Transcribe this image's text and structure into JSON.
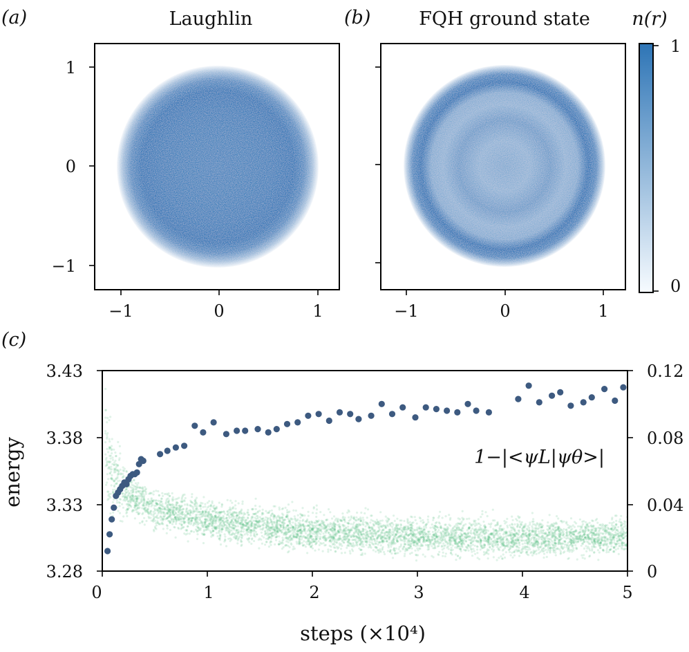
{
  "panel_a": {
    "letter": "(a)",
    "title": "Laughlin",
    "x_ticks": [
      "−1",
      "0",
      "1"
    ],
    "y_ticks": [
      "1",
      "0",
      "−1"
    ]
  },
  "panel_b": {
    "letter": "(b)",
    "title": "FQH ground state",
    "x_ticks": [
      "−1",
      "0",
      "1"
    ]
  },
  "colorbar": {
    "label": "n(r)",
    "max_label": "1",
    "min_label": "0",
    "color_top": "#2e75b6",
    "color_bottom": "#f7fbff"
  },
  "panel_c": {
    "letter": "(c)",
    "left_ylabel": "energy",
    "left_ticks": [
      "3.43",
      "3.38",
      "3.33",
      "3.28"
    ],
    "right_ticks": [
      "0.12",
      "0.08",
      "0.04",
      "0"
    ],
    "x_ticks": [
      "0",
      "1",
      "2",
      "3",
      "4",
      "5"
    ],
    "xlabel": "steps (×10⁴)",
    "infidelity_label": "1−|<ψL|ψθ>|"
  },
  "colors": {
    "energy": "#3cb371",
    "infidelity": "#3d5a80",
    "density": "#2e75b6"
  },
  "chart_data": [
    {
      "type": "heatmap",
      "title": "Laughlin",
      "quantity": "n(r)",
      "xlim": [
        -1.2,
        1.2
      ],
      "ylim": [
        -1.2,
        1.2
      ],
      "disk_radius": 0.99,
      "radial_density": [
        [
          0.0,
          0.88
        ],
        [
          0.3,
          0.9
        ],
        [
          0.55,
          0.93
        ],
        [
          0.75,
          0.98
        ],
        [
          0.85,
          0.82
        ],
        [
          0.93,
          0.45
        ],
        [
          0.99,
          0.05
        ]
      ]
    },
    {
      "type": "heatmap",
      "title": "FQH ground state",
      "quantity": "n(r)",
      "xlim": [
        -1.2,
        1.2
      ],
      "ylim": [
        -1.2,
        1.2
      ],
      "disk_radius": 0.99,
      "radial_density": [
        [
          0.0,
          0.62
        ],
        [
          0.25,
          0.55
        ],
        [
          0.45,
          0.72
        ],
        [
          0.6,
          0.55
        ],
        [
          0.72,
          0.6
        ],
        [
          0.82,
          1.0
        ],
        [
          0.9,
          0.85
        ],
        [
          0.96,
          0.35
        ],
        [
          0.99,
          0.05
        ]
      ]
    },
    {
      "type": "scatter",
      "xlabel": "steps (×10⁴)",
      "xlim": [
        0,
        5
      ],
      "left_axis": {
        "label": "energy",
        "ylim": [
          3.28,
          3.43
        ]
      },
      "right_axis": {
        "ylim": [
          0,
          0.12
        ]
      },
      "series": [
        {
          "name": "energy",
          "axis": "left",
          "band_center": [
            [
              0.0,
              3.41
            ],
            [
              0.05,
              3.37
            ],
            [
              0.1,
              3.35
            ],
            [
              0.2,
              3.34
            ],
            [
              0.5,
              3.326
            ],
            [
              1.0,
              3.318
            ],
            [
              2.0,
              3.31
            ],
            [
              3.0,
              3.306
            ],
            [
              4.0,
              3.305
            ],
            [
              5.0,
              3.306
            ]
          ],
          "band_halfwidth": 0.009
        },
        {
          "name": "1−|<ψL|ψθ>|",
          "axis": "right",
          "x": [
            0.05,
            0.07,
            0.09,
            0.11,
            0.13,
            0.15,
            0.17,
            0.19,
            0.21,
            0.23,
            0.25,
            0.27,
            0.29,
            0.31,
            0.33,
            0.35,
            0.37,
            0.39,
            0.55,
            0.62,
            0.7,
            0.78,
            0.88,
            0.96,
            1.06,
            1.18,
            1.28,
            1.36,
            1.48,
            1.58,
            1.66,
            1.76,
            1.86,
            1.96,
            2.06,
            2.16,
            2.26,
            2.36,
            2.44,
            2.56,
            2.66,
            2.76,
            2.86,
            2.98,
            3.08,
            3.18,
            3.28,
            3.38,
            3.48,
            3.56,
            3.68,
            3.96,
            4.06,
            4.16,
            4.28,
            4.36,
            4.46,
            4.58,
            4.66,
            4.78,
            4.88,
            4.96
          ],
          "y": [
            0.012,
            0.022,
            0.031,
            0.038,
            0.045,
            0.047,
            0.049,
            0.051,
            0.053,
            0.052,
            0.055,
            0.057,
            0.058,
            0.058,
            0.059,
            0.064,
            0.067,
            0.066,
            0.07,
            0.072,
            0.074,
            0.075,
            0.087,
            0.083,
            0.089,
            0.082,
            0.084,
            0.084,
            0.085,
            0.083,
            0.085,
            0.088,
            0.089,
            0.093,
            0.094,
            0.09,
            0.095,
            0.094,
            0.091,
            0.093,
            0.1,
            0.094,
            0.098,
            0.092,
            0.098,
            0.097,
            0.096,
            0.095,
            0.1,
            0.096,
            0.095,
            0.103,
            0.111,
            0.101,
            0.105,
            0.107,
            0.099,
            0.101,
            0.104,
            0.109,
            0.102,
            0.11
          ]
        }
      ]
    }
  ]
}
